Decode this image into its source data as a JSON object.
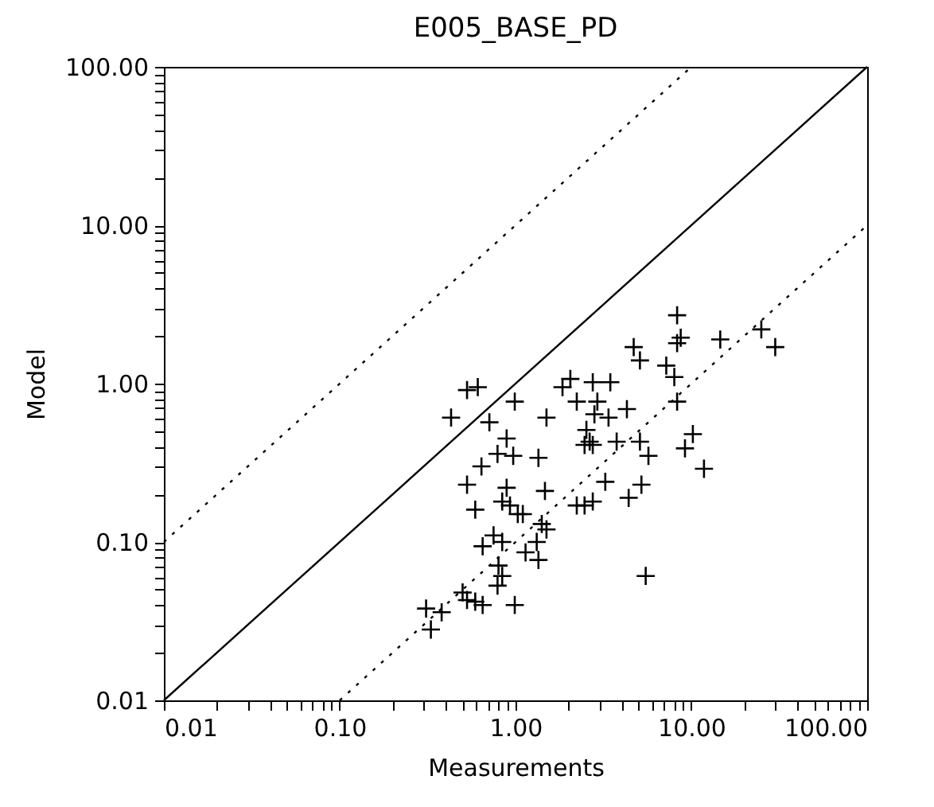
{
  "chart_data": {
    "type": "scatter",
    "title": "E005_BASE_PD",
    "xlabel": "Measurements",
    "ylabel": "Model",
    "log": "xy",
    "xlim": [
      0.01,
      100
    ],
    "ylim": [
      0.01,
      100
    ],
    "xticks": [
      {
        "value": 0.01,
        "label": "0.01"
      },
      {
        "value": 0.02,
        "label": null
      },
      {
        "value": 0.03,
        "label": null
      },
      {
        "value": 0.04,
        "label": null
      },
      {
        "value": 0.05,
        "label": null
      },
      {
        "value": 0.06,
        "label": null
      },
      {
        "value": 0.07,
        "label": null
      },
      {
        "value": 0.08,
        "label": null
      },
      {
        "value": 0.09,
        "label": null
      },
      {
        "value": 0.1,
        "label": "0.10"
      },
      {
        "value": 0.2,
        "label": null
      },
      {
        "value": 0.3,
        "label": null
      },
      {
        "value": 0.4,
        "label": null
      },
      {
        "value": 0.5,
        "label": null
      },
      {
        "value": 0.6,
        "label": null
      },
      {
        "value": 0.7,
        "label": null
      },
      {
        "value": 0.8,
        "label": null
      },
      {
        "value": 0.9,
        "label": null
      },
      {
        "value": 1,
        "label": "1.00"
      },
      {
        "value": 2,
        "label": null
      },
      {
        "value": 3,
        "label": null
      },
      {
        "value": 4,
        "label": null
      },
      {
        "value": 5,
        "label": null
      },
      {
        "value": 6,
        "label": null
      },
      {
        "value": 7,
        "label": null
      },
      {
        "value": 8,
        "label": null
      },
      {
        "value": 9,
        "label": null
      },
      {
        "value": 10,
        "label": "10.00"
      },
      {
        "value": 20,
        "label": null
      },
      {
        "value": 30,
        "label": null
      },
      {
        "value": 40,
        "label": null
      },
      {
        "value": 50,
        "label": null
      },
      {
        "value": 60,
        "label": null
      },
      {
        "value": 70,
        "label": null
      },
      {
        "value": 80,
        "label": null
      },
      {
        "value": 90,
        "label": null
      },
      {
        "value": 100,
        "label": "100.00"
      }
    ],
    "yticks": [
      {
        "value": 0.01,
        "label": "0.01"
      },
      {
        "value": 0.02,
        "label": null
      },
      {
        "value": 0.03,
        "label": null
      },
      {
        "value": 0.04,
        "label": null
      },
      {
        "value": 0.05,
        "label": null
      },
      {
        "value": 0.06,
        "label": null
      },
      {
        "value": 0.07,
        "label": null
      },
      {
        "value": 0.08,
        "label": null
      },
      {
        "value": 0.09,
        "label": null
      },
      {
        "value": 0.1,
        "label": "0.10"
      },
      {
        "value": 0.2,
        "label": null
      },
      {
        "value": 0.3,
        "label": null
      },
      {
        "value": 0.4,
        "label": null
      },
      {
        "value": 0.5,
        "label": null
      },
      {
        "value": 0.6,
        "label": null
      },
      {
        "value": 0.7,
        "label": null
      },
      {
        "value": 0.8,
        "label": null
      },
      {
        "value": 0.9,
        "label": null
      },
      {
        "value": 1,
        "label": "1.00"
      },
      {
        "value": 2,
        "label": null
      },
      {
        "value": 3,
        "label": null
      },
      {
        "value": 4,
        "label": null
      },
      {
        "value": 5,
        "label": null
      },
      {
        "value": 6,
        "label": null
      },
      {
        "value": 7,
        "label": null
      },
      {
        "value": 8,
        "label": null
      },
      {
        "value": 9,
        "label": null
      },
      {
        "value": 10,
        "label": "10.00"
      },
      {
        "value": 20,
        "label": null
      },
      {
        "value": 30,
        "label": null
      },
      {
        "value": 40,
        "label": null
      },
      {
        "value": 50,
        "label": null
      },
      {
        "value": 60,
        "label": null
      },
      {
        "value": 70,
        "label": null
      },
      {
        "value": 80,
        "label": null
      },
      {
        "value": 90,
        "label": null
      },
      {
        "value": 100,
        "label": "100.00"
      }
    ],
    "series": [
      {
        "color": "#000000",
        "marker": "cross",
        "x": [
          0.53,
          0.61,
          0.43,
          0.71,
          0.99,
          1.5,
          0.89,
          0.79,
          0.97,
          0.64,
          1.35,
          2.05,
          1.85,
          2.23,
          2.75,
          3.46,
          2.92,
          2.81,
          3.38,
          2.53,
          2.64,
          2.47,
          2.75,
          3.76,
          0.53,
          0.89,
          1.47,
          3.24,
          0.59,
          0.84,
          0.93,
          1.03,
          1.1,
          2.23,
          2.47,
          2.75,
          0.75,
          0.84,
          0.65,
          1.41,
          1.5,
          1.32,
          1.14,
          1.35,
          0.8,
          0.84,
          0.79,
          0.5,
          0.53,
          0.59,
          0.65,
          0.99,
          0.31,
          0.38,
          0.33,
          8.3,
          8.7,
          8.3,
          4.7,
          5.1,
          14.6,
          25,
          30,
          7.2,
          8.0,
          8.3,
          4.3,
          5.1,
          10.2,
          9.2,
          5.7,
          11.8,
          5.2,
          4.4,
          5.5
        ],
        "values": [
          0.91,
          0.95,
          0.61,
          0.57,
          0.77,
          0.61,
          0.45,
          0.36,
          0.35,
          0.3,
          0.34,
          1.07,
          0.95,
          0.77,
          1.02,
          1.02,
          0.77,
          0.64,
          0.61,
          0.51,
          0.43,
          0.41,
          0.41,
          0.43,
          0.23,
          0.22,
          0.21,
          0.24,
          0.16,
          0.18,
          0.17,
          0.15,
          0.15,
          0.17,
          0.17,
          0.18,
          0.11,
          0.1,
          0.094,
          0.13,
          0.12,
          0.1,
          0.086,
          0.077,
          0.071,
          0.061,
          0.053,
          0.048,
          0.043,
          0.042,
          0.04,
          0.04,
          0.038,
          0.036,
          0.028,
          2.7,
          1.95,
          1.8,
          1.7,
          1.4,
          1.9,
          2.2,
          1.7,
          1.3,
          1.1,
          0.77,
          0.69,
          0.43,
          0.48,
          0.39,
          0.35,
          0.29,
          0.23,
          0.19,
          0.061
        ]
      },
      {
        "type": "line",
        "color": "#000000",
        "line_style": "solid",
        "x": [
          0.01,
          100
        ],
        "values": [
          0.01,
          100
        ]
      },
      {
        "type": "line",
        "color": "#000000",
        "line_style": "dotted",
        "x": [
          0.01,
          10
        ],
        "values": [
          0.1,
          100
        ]
      },
      {
        "type": "line",
        "color": "#000000",
        "line_style": "dotted",
        "x": [
          0.1,
          100
        ],
        "values": [
          0.01,
          10
        ]
      }
    ]
  }
}
